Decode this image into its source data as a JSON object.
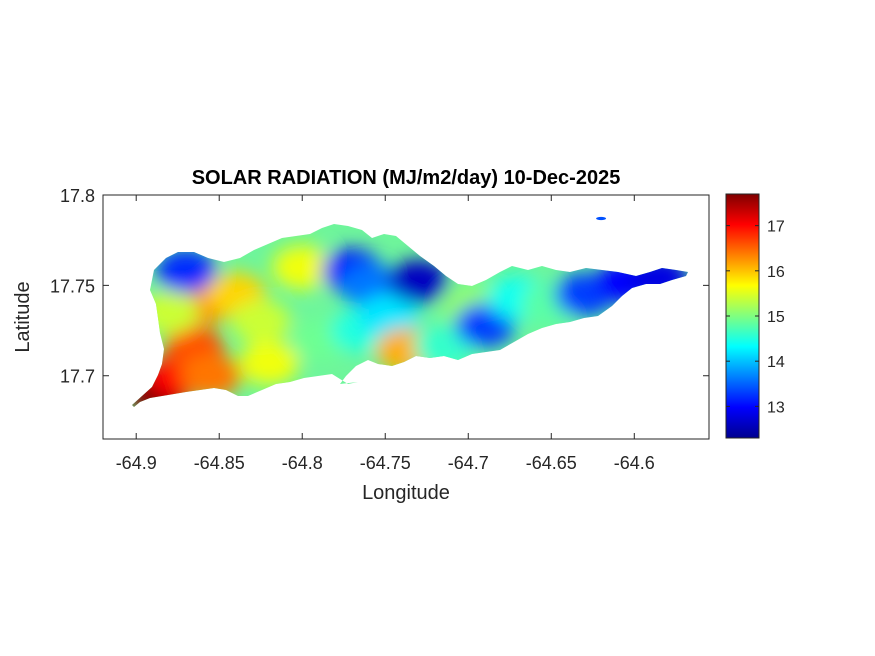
{
  "chart_data": {
    "type": "heatmap",
    "title": "SOLAR RADIATION (MJ/m2/day) 10-Dec-2025",
    "xlabel": "Longitude",
    "ylabel": "Latitude",
    "xlim": [
      -64.92,
      -64.555
    ],
    "ylim": [
      17.665,
      17.8
    ],
    "xticks": [
      -64.9,
      -64.85,
      -64.8,
      -64.75,
      -64.7,
      -64.65,
      -64.6
    ],
    "xtick_labels": [
      "-64.9",
      "-64.85",
      "-64.8",
      "-64.75",
      "-64.7",
      "-64.65",
      "-64.6"
    ],
    "yticks": [
      17.7,
      17.75,
      17.8
    ],
    "ytick_labels": [
      "17.7",
      "17.75",
      "17.8"
    ],
    "colorbar": {
      "min": 12.3,
      "max": 17.7,
      "ticks": [
        13,
        14,
        15,
        16,
        17
      ],
      "tick_labels": [
        "13",
        "14",
        "15",
        "16",
        "17"
      ],
      "colormap": "jet"
    },
    "regions": [
      {
        "lon": -64.887,
        "lat": 17.69,
        "value": 17.7
      },
      {
        "lon": -64.875,
        "lat": 17.7,
        "value": 17.0
      },
      {
        "lon": -64.865,
        "lat": 17.715,
        "value": 16.6
      },
      {
        "lon": -64.86,
        "lat": 17.74,
        "value": 16.3
      },
      {
        "lon": -64.855,
        "lat": 17.7,
        "value": 16.4
      },
      {
        "lon": -64.88,
        "lat": 17.735,
        "value": 15.4
      },
      {
        "lon": -64.87,
        "lat": 17.758,
        "value": 13.2
      },
      {
        "lon": -64.84,
        "lat": 17.745,
        "value": 15.9
      },
      {
        "lon": -64.825,
        "lat": 17.73,
        "value": 15.4
      },
      {
        "lon": -64.82,
        "lat": 17.707,
        "value": 15.6
      },
      {
        "lon": -64.8,
        "lat": 17.76,
        "value": 15.6
      },
      {
        "lon": -64.788,
        "lat": 17.72,
        "value": 14.9
      },
      {
        "lon": -64.77,
        "lat": 17.758,
        "value": 13.0
      },
      {
        "lon": -64.76,
        "lat": 17.75,
        "value": 13.6
      },
      {
        "lon": -64.765,
        "lat": 17.725,
        "value": 14.5
      },
      {
        "lon": -64.748,
        "lat": 17.733,
        "value": 14.2
      },
      {
        "lon": -64.73,
        "lat": 17.752,
        "value": 12.6
      },
      {
        "lon": -64.738,
        "lat": 17.714,
        "value": 16.1
      },
      {
        "lon": -64.715,
        "lat": 17.716,
        "value": 14.6
      },
      {
        "lon": -64.698,
        "lat": 17.738,
        "value": 15.1
      },
      {
        "lon": -64.69,
        "lat": 17.728,
        "value": 13.3
      },
      {
        "lon": -64.67,
        "lat": 17.743,
        "value": 14.4
      },
      {
        "lon": -64.65,
        "lat": 17.74,
        "value": 14.8
      },
      {
        "lon": -64.63,
        "lat": 17.745,
        "value": 13.3
      },
      {
        "lon": -64.605,
        "lat": 17.752,
        "value": 13.0
      },
      {
        "lon": -64.585,
        "lat": 17.754,
        "value": 12.8
      },
      {
        "lon": -64.62,
        "lat": 17.787,
        "value": 13.4
      }
    ]
  }
}
